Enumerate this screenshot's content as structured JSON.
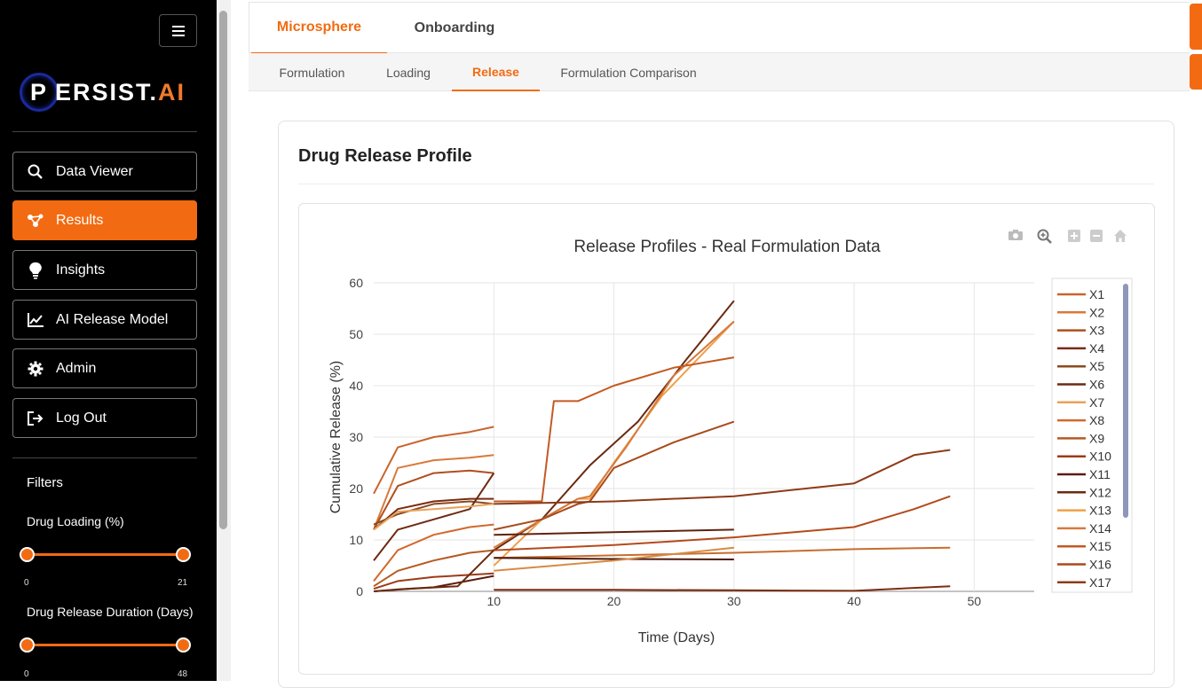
{
  "sidebar": {
    "logo": {
      "p": "P",
      "main": "ERSIST.",
      "accent": "AI"
    },
    "items": [
      {
        "label": "Data Viewer",
        "icon": "search-icon"
      },
      {
        "label": "Results",
        "icon": "network-icon"
      },
      {
        "label": "Insights",
        "icon": "lightbulb-icon"
      },
      {
        "label": "AI Release Model",
        "icon": "line-chart-icon"
      },
      {
        "label": "Admin",
        "icon": "gear-icon"
      },
      {
        "label": "Log Out",
        "icon": "logout-icon"
      }
    ],
    "filters": {
      "title": "Filters",
      "drug_loading": {
        "label": "Drug Loading (%)",
        "min": "0",
        "max": "21"
      },
      "duration": {
        "label": "Drug Release Duration (Days)",
        "min": "0",
        "max": "48"
      }
    }
  },
  "tabs": {
    "main": [
      "Microsphere",
      "Onboarding"
    ],
    "sub": [
      "Formulation",
      "Loading",
      "Release",
      "Formulation Comparison"
    ]
  },
  "card": {
    "title": "Drug Release Profile"
  },
  "colors": {
    "accent": "#f26b12"
  },
  "chart_data": {
    "type": "line",
    "title": "Release Profiles - Real Formulation Data",
    "xlabel": "Time (Days)",
    "ylabel": "Cumulative Release (%)",
    "xlim": [
      0,
      55
    ],
    "ylim": [
      0,
      60
    ],
    "xticks": [
      10,
      20,
      30,
      40,
      50
    ],
    "yticks": [
      0,
      10,
      20,
      30,
      40,
      50,
      60
    ],
    "grid": true,
    "legend": "right",
    "series": [
      {
        "name": "X1",
        "color": "#c8642c",
        "x": [
          0,
          2,
          5,
          8,
          10
        ],
        "y": [
          19,
          28,
          30,
          31,
          32
        ]
      },
      {
        "name": "X2",
        "color": "#d9793a",
        "x": [
          0,
          2,
          5,
          8,
          10
        ],
        "y": [
          12,
          24,
          25.5,
          26,
          26.5
        ]
      },
      {
        "name": "X3",
        "color": "#b04f1e",
        "x": [
          0,
          2,
          5,
          8,
          10
        ],
        "y": [
          12,
          20.5,
          23,
          23.5,
          23
        ]
      },
      {
        "name": "X4",
        "color": "#7a2a10",
        "x": [
          0,
          2,
          5,
          8,
          10
        ],
        "y": [
          12,
          16,
          17.5,
          18,
          18
        ]
      },
      {
        "name": "X5",
        "color": "#8b4a1e",
        "x": [
          0,
          2,
          5,
          8,
          10
        ],
        "y": [
          13,
          15,
          17,
          17.5,
          17
        ]
      },
      {
        "name": "X6",
        "color": "#6e2a12",
        "x": [
          0,
          2,
          5,
          8,
          10
        ],
        "y": [
          6,
          12,
          14,
          16,
          23
        ]
      },
      {
        "name": "X7",
        "color": "#e8a25a",
        "x": [
          0,
          2,
          5,
          8,
          10
        ],
        "y": [
          12,
          15.5,
          16,
          16.5,
          17
        ]
      },
      {
        "name": "X8",
        "color": "#d2692c",
        "x": [
          0,
          2,
          5,
          8,
          10
        ],
        "y": [
          2,
          8,
          11,
          12.5,
          13
        ]
      },
      {
        "name": "X9",
        "color": "#b55a22",
        "x": [
          0,
          2,
          5,
          8,
          10
        ],
        "y": [
          1,
          4,
          6,
          7.5,
          8
        ]
      },
      {
        "name": "X10",
        "color": "#9a3c18",
        "x": [
          0,
          2,
          5,
          8,
          10
        ],
        "y": [
          0.5,
          2,
          2.8,
          3.2,
          3.5
        ]
      },
      {
        "name": "X11",
        "color": "#5a1c0c",
        "x": [
          0,
          2,
          5,
          10
        ],
        "y": [
          0,
          0.4,
          0.8,
          3
        ]
      },
      {
        "name": "X12",
        "color": "#6a2a10",
        "x": [
          0,
          3,
          7,
          10,
          14,
          18,
          22,
          26,
          30
        ],
        "y": [
          0,
          0.5,
          1,
          8,
          14,
          24.5,
          33,
          45,
          56.5
        ]
      },
      {
        "name": "X13",
        "color": "#efa04a",
        "x": [
          10,
          14,
          17,
          18,
          20,
          24,
          30
        ],
        "y": [
          5,
          14,
          18,
          18,
          25,
          38,
          52.5
        ]
      },
      {
        "name": "X14",
        "color": "#d67a3c",
        "x": [
          10,
          14,
          17,
          18,
          21,
          25,
          30
        ],
        "y": [
          8.5,
          14,
          18,
          18.5,
          28,
          42,
          52.5
        ]
      },
      {
        "name": "X15",
        "color": "#c35a24",
        "x": [
          10,
          14,
          15,
          17,
          20,
          25,
          30
        ],
        "y": [
          17.5,
          17.5,
          37,
          37,
          40,
          43.5,
          45.5
        ]
      },
      {
        "name": "X16",
        "color": "#a84a1c",
        "x": [
          10,
          14,
          17,
          18,
          20,
          25,
          30
        ],
        "y": [
          12,
          14,
          17,
          17.5,
          24,
          29,
          33
        ]
      },
      {
        "name": "X17",
        "color": "#8e3a18",
        "x": [
          10,
          20,
          30,
          40,
          45,
          48
        ],
        "y": [
          17,
          17.5,
          18.5,
          21,
          26.5,
          27.5
        ]
      },
      {
        "name": "",
        "color": "#b44a1a",
        "x": [
          10,
          20,
          30,
          40,
          45,
          48
        ],
        "y": [
          8,
          9,
          10.5,
          12.5,
          16,
          18.5
        ]
      },
      {
        "name": "",
        "color": "#c76d2e",
        "x": [
          10,
          20,
          30,
          40,
          48
        ],
        "y": [
          6.5,
          7,
          7.5,
          8.2,
          8.5
        ]
      },
      {
        "name": "",
        "color": "#7d2d10",
        "x": [
          10,
          20,
          30,
          40,
          48
        ],
        "y": [
          0.3,
          0.3,
          0.2,
          0.1,
          1
        ]
      },
      {
        "name": "",
        "color": "#5f230e",
        "x": [
          10,
          20,
          30
        ],
        "y": [
          11,
          11.5,
          12
        ]
      },
      {
        "name": "",
        "color": "#4c1b0c",
        "x": [
          10,
          20,
          30
        ],
        "y": [
          6.5,
          6.3,
          6.2
        ]
      },
      {
        "name": "",
        "color": "#d98a44",
        "x": [
          10,
          20,
          30
        ],
        "y": [
          4,
          6,
          8.5
        ]
      }
    ]
  }
}
